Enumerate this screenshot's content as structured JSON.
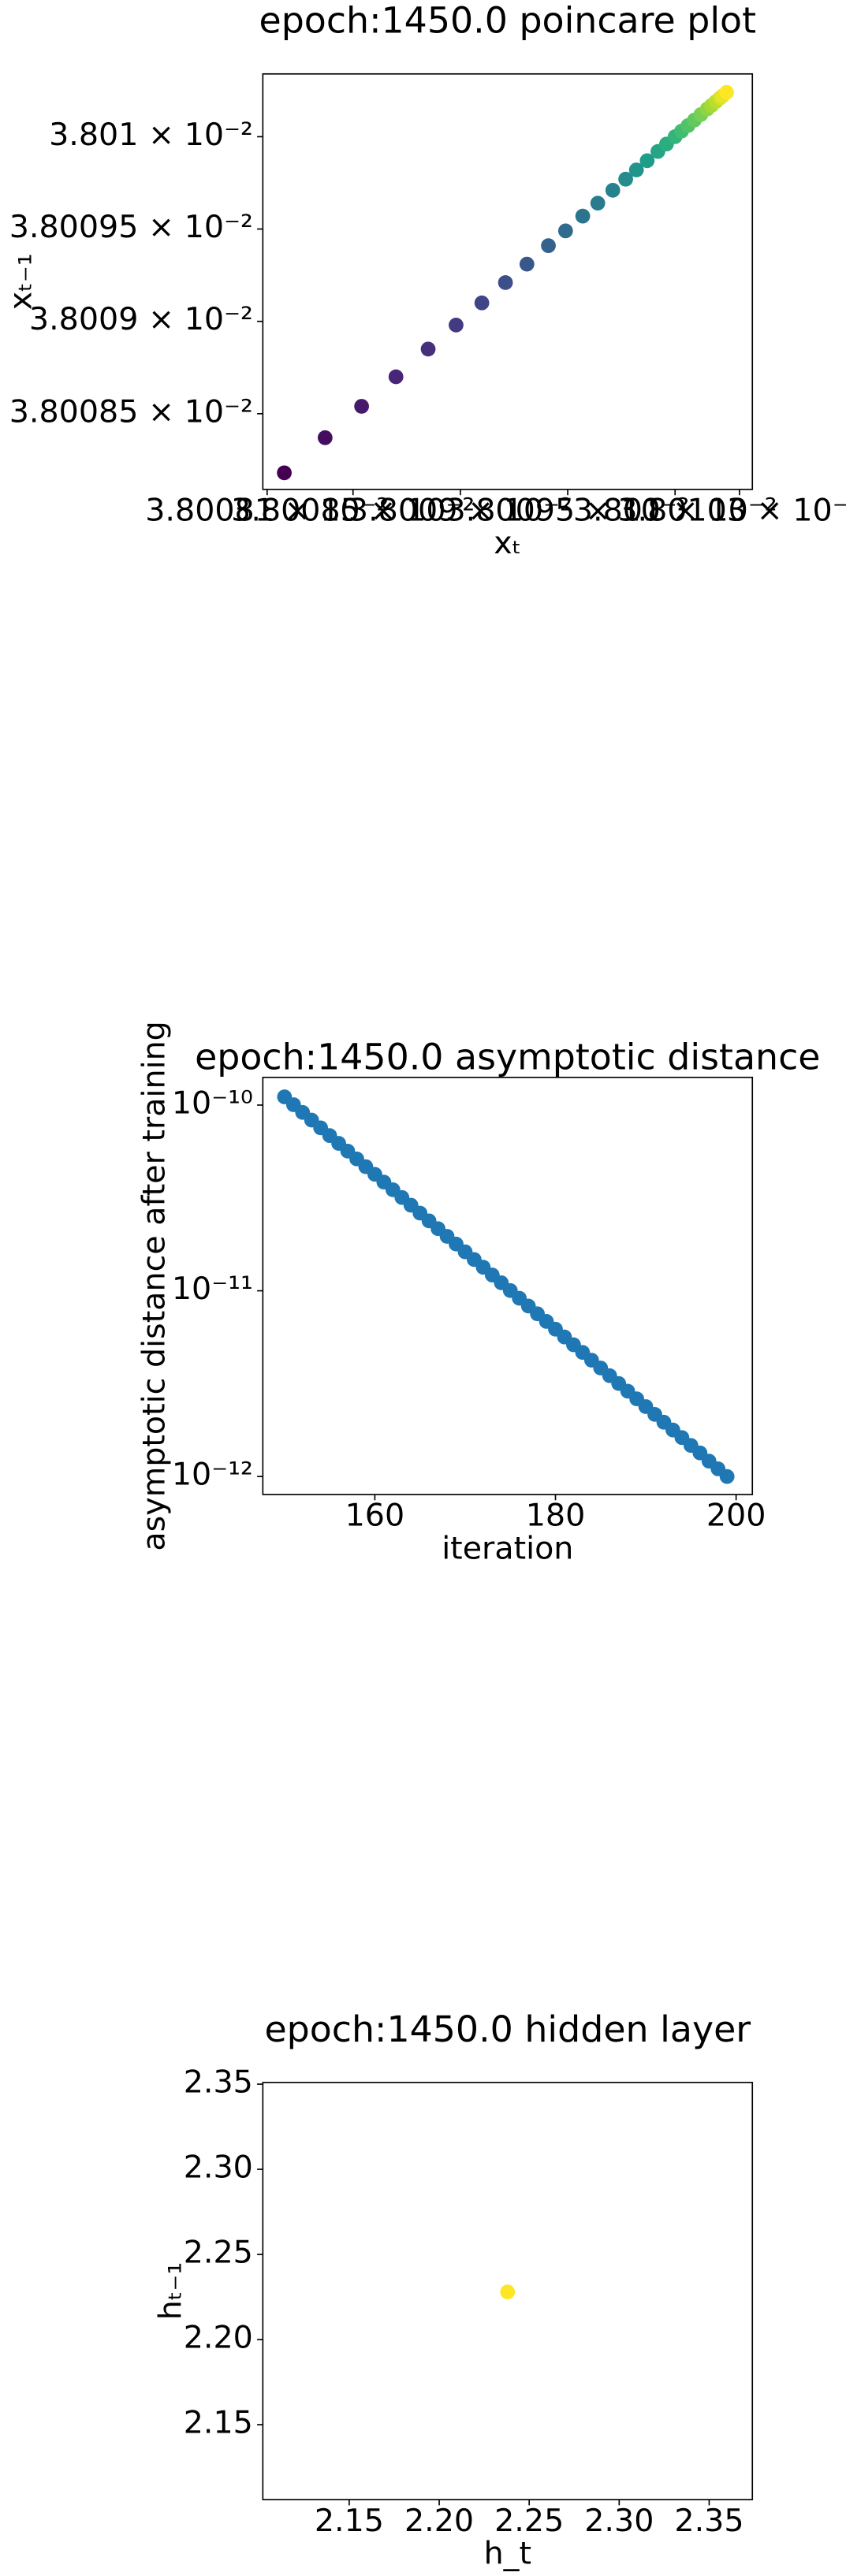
{
  "chart_data": [
    {
      "type": "scatter",
      "title": "epoch:1450.0 poincare plot",
      "xlabel": "xₜ",
      "ylabel": "xₜ₋₁",
      "xscale": "log",
      "yscale": "log",
      "colormap": "viridis",
      "x": [
        0.03800818,
        0.03800837,
        0.03800854,
        0.0380087,
        0.03800885,
        0.03800898,
        0.0380091,
        0.03800921,
        0.03800931,
        0.03800941,
        0.03800949,
        0.03800957,
        0.03800964,
        0.03800971,
        0.03800977,
        0.03800982,
        0.03800987,
        0.03800992,
        0.03800996,
        0.03801,
        0.03801003,
        0.03801006,
        0.03801009,
        0.03801012,
        0.03801015,
        0.03801017,
        0.03801019,
        0.03801021,
        0.03801022,
        0.03801024
      ],
      "y": [
        0.03800818,
        0.03800837,
        0.03800854,
        0.0380087,
        0.03800885,
        0.03800898,
        0.0380091,
        0.03800921,
        0.03800931,
        0.03800941,
        0.03800949,
        0.03800957,
        0.03800964,
        0.03800971,
        0.03800977,
        0.03800982,
        0.03800987,
        0.03800992,
        0.03800996,
        0.03801,
        0.03801003,
        0.03801006,
        0.03801009,
        0.03801012,
        0.03801015,
        0.03801017,
        0.03801019,
        0.03801021,
        0.03801022,
        0.03801024
      ],
      "xlim": [
        0.03800808,
        0.03801036
      ],
      "ylim": [
        0.03800809,
        0.03801034
      ],
      "xticks": [
        {
          "value": 0.0380081,
          "label": "3.80081 × 10⁻²"
        },
        {
          "value": 0.0380085,
          "label": "3.80085 × 10⁻²"
        },
        {
          "value": 0.038009,
          "label": "3.8009 × 10⁻²"
        },
        {
          "value": 0.0380095,
          "label": "3.80095 × 10⁻²"
        },
        {
          "value": 0.03801,
          "label": "3.801 × 10⁻²"
        },
        {
          "value": 0.0380103,
          "label": "3.80103 × 10⁻²"
        }
      ],
      "yticks": [
        {
          "value": 0.0380085,
          "label": "3.80085 × 10⁻²"
        },
        {
          "value": 0.038009,
          "label": "3.8009 × 10⁻²"
        },
        {
          "value": 0.0380095,
          "label": "3.80095 × 10⁻²"
        },
        {
          "value": 0.03801,
          "label": "3.801 × 10⁻²"
        }
      ]
    },
    {
      "type": "scatter",
      "title": "epoch:1450.0 asymptotic distance",
      "xlabel": "iteration",
      "ylabel": "asymptotic distance after training",
      "yscale": "log",
      "color": "#1f77b4",
      "x": [
        150,
        151,
        152,
        153,
        154,
        155,
        156,
        157,
        158,
        159,
        160,
        161,
        162,
        163,
        164,
        165,
        166,
        167,
        168,
        169,
        170,
        171,
        172,
        173,
        174,
        175,
        176,
        177,
        178,
        179,
        180,
        181,
        182,
        183,
        184,
        185,
        186,
        187,
        188,
        189,
        190,
        191,
        192,
        193,
        194,
        195,
        196,
        197,
        198,
        199
      ],
      "y": [
        1.107e-10,
        1.005e-10,
        9.13e-11,
        8.3e-11,
        7.54e-11,
        6.85e-11,
        6.22e-11,
        5.65e-11,
        5.13e-11,
        4.66e-11,
        4.24e-11,
        3.85e-11,
        3.5e-11,
        3.18e-11,
        2.89e-11,
        2.62e-11,
        2.38e-11,
        2.16e-11,
        1.965e-11,
        1.785e-11,
        1.622e-11,
        1.474e-11,
        1.339e-11,
        1.216e-11,
        1.105e-11,
        1.003e-11,
        9.12e-12,
        8.28e-12,
        7.52e-12,
        6.84e-12,
        6.21e-12,
        5.64e-12,
        5.12e-12,
        4.66e-12,
        4.23e-12,
        3.84e-12,
        3.49e-12,
        3.17e-12,
        2.88e-12,
        2.62e-12,
        2.38e-12,
        2.16e-12,
        1.96e-12,
        1.78e-12,
        1.62e-12,
        1.47e-12,
        1.34e-12,
        1.21e-12,
        1.1e-12,
        1e-12
      ],
      "xlim": [
        147.6,
        201.8
      ],
      "ylim": [
        8e-13,
        1.41e-10
      ],
      "xticks": [
        160,
        180,
        200
      ],
      "yticks": [
        {
          "value": 1e-10,
          "label": "10⁻¹⁰"
        },
        {
          "value": 1e-11,
          "label": "10⁻¹¹"
        },
        {
          "value": 1e-12,
          "label": "10⁻¹²"
        }
      ]
    },
    {
      "type": "scatter",
      "title": "epoch:1450.0 hidden layer",
      "xlabel": "h_t",
      "ylabel": "hₜ₋₁",
      "color": "#fde725",
      "x": [
        2.238
      ],
      "y": [
        2.228
      ],
      "xlim": [
        2.102,
        2.374
      ],
      "ylim": [
        2.106,
        2.351
      ],
      "xticks": [
        {
          "value": 2.15,
          "label": "2.15"
        },
        {
          "value": 2.2,
          "label": "2.20"
        },
        {
          "value": 2.25,
          "label": "2.25"
        },
        {
          "value": 2.3,
          "label": "2.30"
        },
        {
          "value": 2.35,
          "label": "2.35"
        }
      ],
      "yticks": [
        {
          "value": 2.15,
          "label": "2.15"
        },
        {
          "value": 2.2,
          "label": "2.20"
        },
        {
          "value": 2.25,
          "label": "2.25"
        },
        {
          "value": 2.3,
          "label": "2.30"
        },
        {
          "value": 2.35,
          "label": "2.35"
        }
      ]
    }
  ]
}
